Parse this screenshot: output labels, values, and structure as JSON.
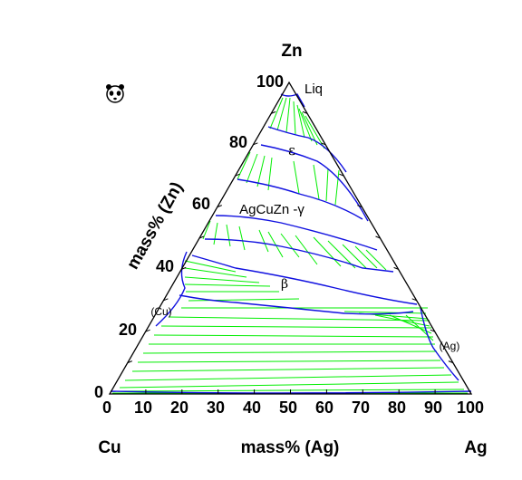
{
  "vertices": {
    "top": "Zn",
    "left": "Cu",
    "right": "Ag"
  },
  "axes": {
    "bottom_label": "mass% (Ag)",
    "left_label": "mass% (Zn)",
    "bottom_ticks": [
      "0",
      "10",
      "20",
      "30",
      "40",
      "50",
      "60",
      "70",
      "80",
      "90",
      "100"
    ],
    "left_ticks": [
      "0",
      "20",
      "40",
      "60",
      "80",
      "100"
    ]
  },
  "phases": {
    "liq": "Liq",
    "epsilon": "ε",
    "gamma": "AgCuZn -γ",
    "beta": "β",
    "cu": "(Cu)",
    "ag": "(Ag)"
  },
  "colors": {
    "boundary": "#1010e0",
    "tieline": "#00ee00",
    "frame": "#000000"
  },
  "logo_icon": "panda-face-icon"
}
